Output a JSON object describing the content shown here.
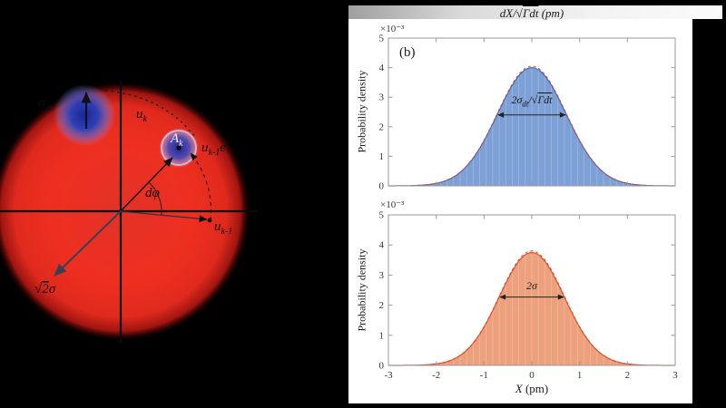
{
  "panel_label": "(b)",
  "diagram": {
    "labels": {
      "sigma_dt": {
        "main": "σ",
        "sub": "dt"
      },
      "u_k": {
        "main": "u",
        "sub": "k"
      },
      "A_k": {
        "main": "A",
        "sub": "k"
      },
      "u_k1e": {
        "main": "u",
        "sub": "k-1",
        "post": "e"
      },
      "dphi": "dφ",
      "u_k1": {
        "main": "u",
        "sub": "k-1"
      },
      "sqrt2sigma": {
        "root": "√",
        "over": "2",
        "post": "σ"
      }
    },
    "colors": {
      "disk": "#ea2f23",
      "blob": "#2433a8",
      "axis": "#0a0a0a"
    }
  },
  "chart_data": [
    {
      "type": "area",
      "title_parts": {
        "pre": "dX/√",
        "sqrt": "Γdt",
        "unit": " (pm)"
      },
      "ylabel": "Probability density",
      "scale_label": "×10⁻³",
      "xlim": [
        -3,
        3
      ],
      "ylim": [
        0,
        5
      ],
      "xticks": [
        -3,
        -2,
        -1,
        0,
        1,
        2,
        3
      ],
      "yticks": [
        0,
        1,
        2,
        3,
        4,
        5
      ],
      "show_xtick_labels": false,
      "legend": "none",
      "series": [
        {
          "name": "histogram",
          "dist": "gaussian",
          "mean": 0,
          "sigma": 0.72,
          "peak": 4.0,
          "fill": "#7da0d6",
          "edge": "#3f6cb3"
        },
        {
          "name": "gaussian-fit",
          "dist": "gaussian",
          "mean": 0,
          "sigma": 0.72,
          "peak": 4.05,
          "stroke": "#e8413c",
          "dash": true
        }
      ],
      "annotation": {
        "x1": -0.72,
        "x2": 0.72,
        "y": 2.4,
        "parts": {
          "pre": "2σ",
          "sub": "dt",
          "mid": "/√",
          "sqrt": "Γdt"
        }
      }
    },
    {
      "type": "area",
      "xlabel_parts": {
        "var": "X",
        "unit": " (pm)"
      },
      "ylabel": "Probability density",
      "scale_label": "×10⁻³",
      "xlim": [
        -3,
        3
      ],
      "ylim": [
        0,
        5
      ],
      "xticks": [
        -3,
        -2,
        -1,
        0,
        1,
        2,
        3
      ],
      "yticks": [
        0,
        1,
        2,
        3,
        4,
        5
      ],
      "show_xtick_labels": true,
      "legend": "none",
      "series": [
        {
          "name": "histogram",
          "dist": "gaussian",
          "mean": 0,
          "sigma": 0.68,
          "peak": 3.75,
          "fill": "#eda07c",
          "edge": "#cf5b2a"
        },
        {
          "name": "gaussian-fit",
          "dist": "gaussian",
          "mean": 0,
          "sigma": 0.68,
          "peak": 3.8,
          "stroke": "#e8413c",
          "dash": true
        }
      ],
      "annotation": {
        "x1": -0.68,
        "x2": 0.68,
        "y": 2.27,
        "parts": {
          "pre": "2σ"
        }
      }
    }
  ]
}
